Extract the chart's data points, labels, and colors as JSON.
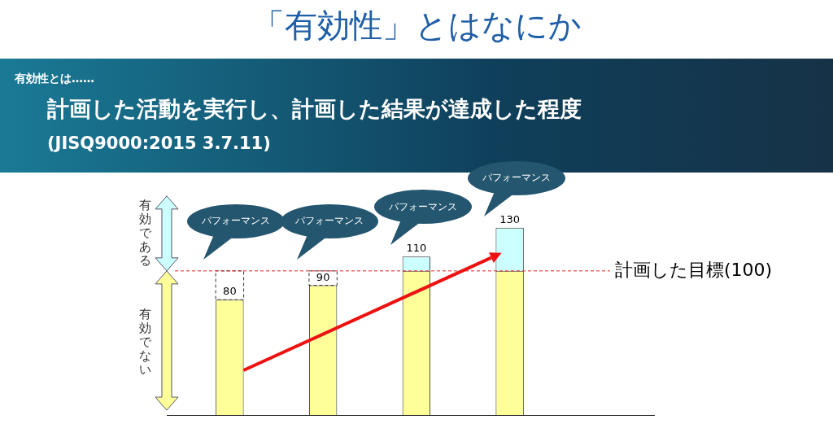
{
  "chart_data": {
    "type": "bar",
    "title": "「有効性」とはなにか",
    "subtitle": "計画した活動を実行し、計画した結果が達成した程度",
    "categories": [
      null,
      null,
      null,
      null
    ],
    "stacked": true,
    "tick_labels": false,
    "grid": false,
    "legend": false,
    "series": [
      {
        "color": "#ffff99",
        "values": [
          80,
          90,
          100,
          100
        ],
        "value_labels": [
          "80",
          "90",
          null,
          null
        ]
      },
      {
        "color": "#ccffff",
        "values": [
          null,
          null,
          10,
          30
        ]
      }
    ],
    "totals": [
      null,
      null,
      "110",
      "130"
    ],
    "ref_lines": [
      {
        "axis": "y",
        "value": 100,
        "label": "計画した目標(100)",
        "color": "#e02020",
        "line_style": "dashed"
      }
    ],
    "annotations": [
      "有効性とは……",
      "(JISQ9000:2015 3.7.11)",
      "有効である",
      "有効でない",
      "パフォーマンス",
      "パフォーマンス",
      "パフォーマンス",
      "パフォーマンス"
    ]
  }
}
